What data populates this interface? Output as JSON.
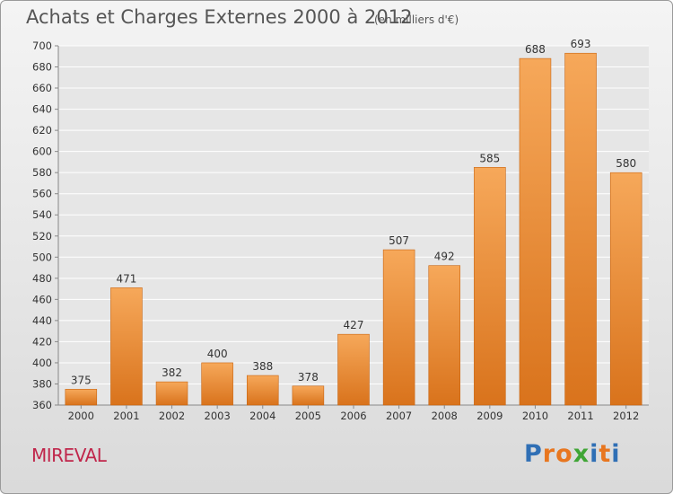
{
  "header": {
    "title": "Achats et Charges Externes 2000 à 2012",
    "unit": "(en milliers d'€)"
  },
  "footer": {
    "location": "MIREVAL",
    "logo_text": "Proxiti",
    "logo_colors": [
      "#2f6fb5",
      "#e8761f",
      "#e8761f",
      "#3fa535",
      "#2f6fb5",
      "#e8761f",
      "#2f6fb5"
    ]
  },
  "colors": {
    "bar_top": "#f6a85a",
    "bar_bottom": "#d9731c",
    "bar_edge": "#c86410",
    "grid": "#ffffff",
    "axis_text": "#333333"
  },
  "chart_data": {
    "type": "bar",
    "title": "Achats et Charges Externes 2000 à 2012",
    "subtitle": "(en milliers d'€)",
    "categories": [
      "2000",
      "2001",
      "2002",
      "2003",
      "2004",
      "2005",
      "2006",
      "2007",
      "2008",
      "2009",
      "2010",
      "2011",
      "2012"
    ],
    "values": [
      375,
      471,
      382,
      400,
      388,
      378,
      427,
      507,
      492,
      585,
      688,
      693,
      580
    ],
    "ylim": [
      360,
      700
    ],
    "yticks": [
      360,
      380,
      400,
      420,
      440,
      460,
      480,
      500,
      520,
      540,
      560,
      580,
      600,
      620,
      640,
      660,
      680,
      700
    ],
    "grid": true,
    "xlabel": "",
    "ylabel": ""
  }
}
